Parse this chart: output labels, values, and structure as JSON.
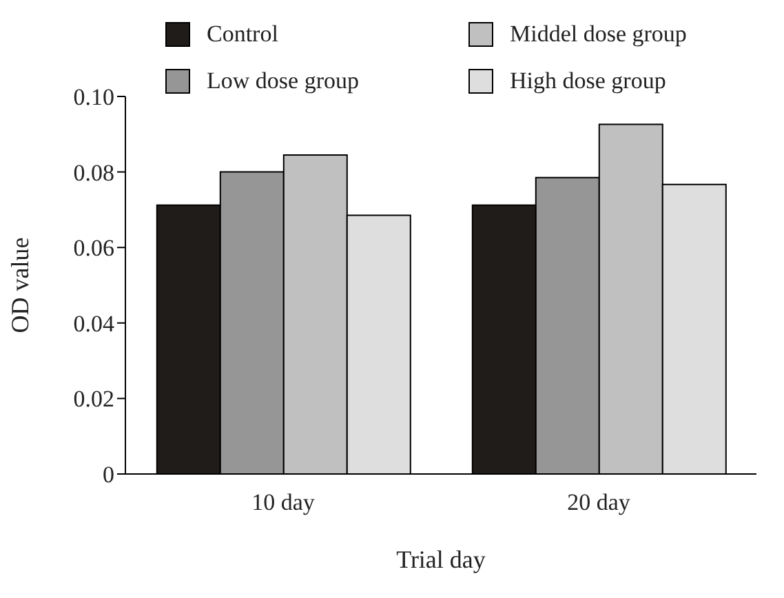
{
  "chart_data": {
    "type": "bar",
    "xlabel": "Trial day",
    "ylabel": "OD value",
    "categories": [
      "10 day",
      "20 day"
    ],
    "series": [
      {
        "name": "Control",
        "color": "#201c19",
        "values": [
          0.0712,
          0.0712
        ]
      },
      {
        "name": "Low dose group",
        "color": "#969696",
        "values": [
          0.08,
          0.0785
        ]
      },
      {
        "name": "Middel dose group",
        "color": "#c0c0c0",
        "values": [
          0.0845,
          0.0926
        ]
      },
      {
        "name": "High dose group",
        "color": "#dedede",
        "values": [
          0.0685,
          0.0767
        ]
      }
    ],
    "ylim": [
      0,
      0.1
    ],
    "yticks": [
      0,
      0.02,
      0.04,
      0.06,
      0.08,
      {
        "value": 0.1,
        "label": "0.10"
      }
    ],
    "legend": "top",
    "grid": false
  }
}
